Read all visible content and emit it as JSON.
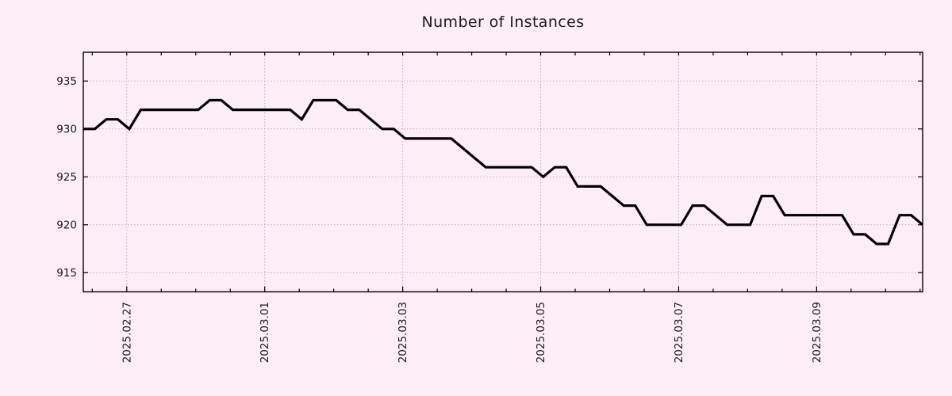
{
  "colors": {
    "background": "#fcedf7",
    "line": "#000000",
    "grid": "#b9afba",
    "axis": "#000000",
    "text": "#1b1b1b"
  },
  "chart_data": {
    "type": "line",
    "title": "Number of Instances",
    "legend": "none",
    "grid": "dotted, at labeled x dates and labeled y values",
    "y_axis": {
      "ticks": [
        915,
        920,
        925,
        930,
        935
      ],
      "range": [
        913,
        938
      ]
    },
    "x_axis": {
      "tick_labels": [
        "2025.02.27",
        "2025.03.01",
        "2025.03.03",
        "2025.03.05",
        "2025.03.07",
        "2025.03.09"
      ],
      "tick_interval_days": 2,
      "minor_tick_hours": 12,
      "first_tick_offset_days": 0.63,
      "points_per_day": 6,
      "start_approx": "2025.02.26 ~09:00",
      "end_approx": "2025.03.10 ~13:00"
    },
    "series": [
      {
        "name": "Number of Instances",
        "color": "#000000",
        "line_width": 3.2,
        "values": [
          930,
          930,
          931,
          931,
          930,
          932,
          932,
          932,
          932,
          932,
          932,
          933,
          933,
          932,
          932,
          932,
          932,
          932,
          932,
          931,
          933,
          933,
          933,
          932,
          932,
          931,
          930,
          930,
          929,
          929,
          929,
          929,
          929,
          928,
          927,
          926,
          926,
          926,
          926,
          926,
          925,
          926,
          926,
          924,
          924,
          924,
          923,
          922,
          922,
          920,
          920,
          920,
          920,
          922,
          922,
          921,
          920,
          920,
          920,
          923,
          923,
          921,
          921,
          921,
          921,
          921,
          921,
          919,
          919,
          918,
          918,
          921,
          921,
          920
        ]
      }
    ]
  }
}
